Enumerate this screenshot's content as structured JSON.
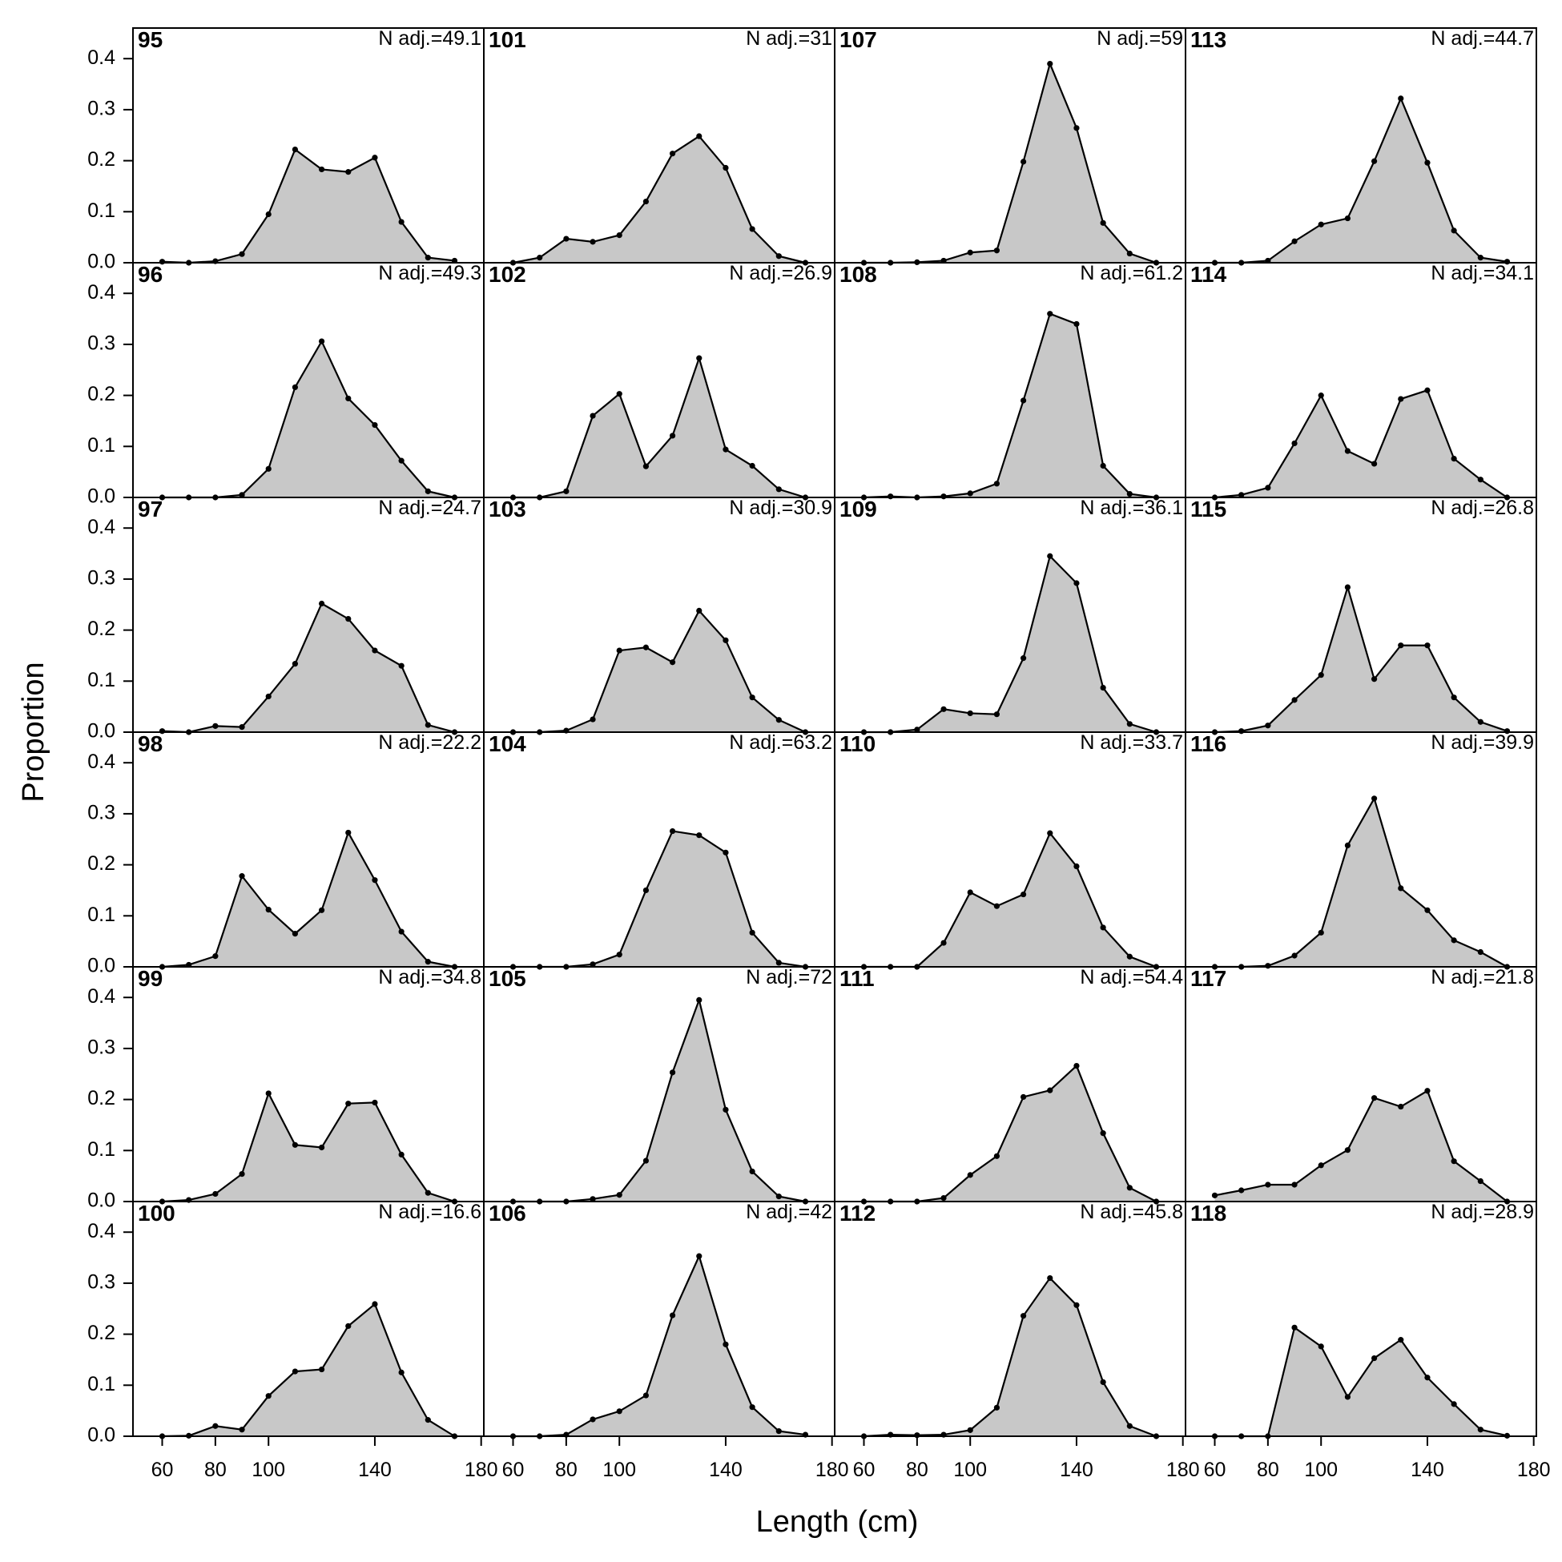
{
  "chart_data": {
    "type": "area",
    "xlabel": "Length (cm)",
    "ylabel": "Proportion",
    "x": [
      60,
      70,
      80,
      90,
      100,
      110,
      120,
      130,
      140,
      150,
      160,
      170
    ],
    "xlim": [
      49,
      181
    ],
    "ylim": [
      0,
      0.46
    ],
    "xticks": [
      60,
      80,
      100,
      140,
      180
    ],
    "yticks": [
      {
        "value": 0,
        "label": "0.0"
      },
      0.1,
      0.2,
      0.3,
      0.4
    ],
    "color": "#c8c8c8",
    "line_color": "#000000",
    "panels": [
      {
        "title": "95",
        "annotation": "N adj.=49.1",
        "values": [
          0.002,
          0,
          0.003,
          0.017,
          0.095,
          0.222,
          0.183,
          0.178,
          0.206,
          0.08,
          0.01,
          0.004
        ]
      },
      {
        "title": "96",
        "annotation": "N adj.=49.3",
        "values": [
          0,
          0,
          0,
          0.005,
          0.056,
          0.216,
          0.306,
          0.194,
          0.142,
          0.072,
          0.012,
          0
        ]
      },
      {
        "title": "97",
        "annotation": "N adj.=24.7",
        "values": [
          0.002,
          0,
          0.012,
          0.01,
          0.07,
          0.134,
          0.252,
          0.222,
          0.16,
          0.13,
          0.014,
          0
        ]
      },
      {
        "title": "98",
        "annotation": "N adj.=22.2",
        "values": [
          0,
          0.004,
          0.021,
          0.178,
          0.112,
          0.065,
          0.111,
          0.263,
          0.17,
          0.069,
          0.01,
          0
        ]
      },
      {
        "title": "99",
        "annotation": "N adj.=34.8",
        "values": [
          0,
          0.003,
          0.015,
          0.054,
          0.212,
          0.111,
          0.106,
          0.192,
          0.194,
          0.092,
          0.017,
          0
        ]
      },
      {
        "title": "100",
        "annotation": "N adj.=16.6",
        "values": [
          0,
          0.001,
          0.02,
          0.013,
          0.079,
          0.127,
          0.131,
          0.216,
          0.259,
          0.125,
          0.032,
          0
        ]
      },
      {
        "title": "101",
        "annotation": "N adj.=31",
        "values": [
          0,
          0.01,
          0.047,
          0.041,
          0.054,
          0.12,
          0.214,
          0.248,
          0.186,
          0.066,
          0.013,
          0
        ]
      },
      {
        "title": "102",
        "annotation": "N adj.=26.9",
        "values": [
          0,
          0,
          0.012,
          0.16,
          0.203,
          0.061,
          0.121,
          0.273,
          0.094,
          0.062,
          0.016,
          0
        ]
      },
      {
        "title": "103",
        "annotation": "N adj.=30.9",
        "values": [
          0,
          0,
          0.003,
          0.025,
          0.16,
          0.166,
          0.137,
          0.238,
          0.18,
          0.068,
          0.024,
          0
        ]
      },
      {
        "title": "104",
        "annotation": "N adj.=63.2",
        "values": [
          0,
          0,
          0,
          0.005,
          0.024,
          0.15,
          0.266,
          0.258,
          0.224,
          0.067,
          0.008,
          0
        ]
      },
      {
        "title": "105",
        "annotation": "N adj.=72",
        "values": [
          0,
          0,
          0,
          0.005,
          0.013,
          0.08,
          0.253,
          0.395,
          0.18,
          0.059,
          0.01,
          0
        ]
      },
      {
        "title": "106",
        "annotation": "N adj.=42",
        "values": [
          0,
          0,
          0.003,
          0.033,
          0.049,
          0.08,
          0.237,
          0.353,
          0.18,
          0.057,
          0.01,
          0.003
        ]
      },
      {
        "title": "107",
        "annotation": "N adj.=59",
        "values": [
          0,
          0,
          0.001,
          0.004,
          0.02,
          0.024,
          0.198,
          0.39,
          0.264,
          0.078,
          0.018,
          0
        ]
      },
      {
        "title": "108",
        "annotation": "N adj.=61.2",
        "values": [
          0,
          0.002,
          0,
          0.002,
          0.008,
          0.027,
          0.19,
          0.36,
          0.34,
          0.062,
          0.007,
          0
        ]
      },
      {
        "title": "109",
        "annotation": "N adj.=36.1",
        "values": [
          0,
          0,
          0.005,
          0.045,
          0.037,
          0.035,
          0.145,
          0.345,
          0.292,
          0.087,
          0.016,
          0
        ]
      },
      {
        "title": "110",
        "annotation": "N adj.=33.7",
        "values": [
          0,
          0,
          0,
          0.047,
          0.146,
          0.119,
          0.142,
          0.262,
          0.197,
          0.077,
          0.02,
          0
        ]
      },
      {
        "title": "111",
        "annotation": "N adj.=54.4",
        "values": [
          0,
          0,
          0,
          0.007,
          0.052,
          0.089,
          0.205,
          0.218,
          0.266,
          0.134,
          0.027,
          0
        ]
      },
      {
        "title": "112",
        "annotation": "N adj.=45.8",
        "values": [
          0,
          0.003,
          0.002,
          0.003,
          0.012,
          0.056,
          0.236,
          0.31,
          0.257,
          0.106,
          0.02,
          0
        ]
      },
      {
        "title": "113",
        "annotation": "N adj.=44.7",
        "values": [
          0,
          0,
          0.004,
          0.042,
          0.075,
          0.087,
          0.199,
          0.322,
          0.196,
          0.063,
          0.01,
          0.002
        ]
      },
      {
        "title": "114",
        "annotation": "N adj.=34.1",
        "values": [
          0,
          0.005,
          0.019,
          0.106,
          0.2,
          0.091,
          0.066,
          0.193,
          0.21,
          0.076,
          0.035,
          0
        ]
      },
      {
        "title": "115",
        "annotation": "N adj.=26.8",
        "values": [
          0,
          0.002,
          0.013,
          0.063,
          0.112,
          0.284,
          0.104,
          0.17,
          0.17,
          0.068,
          0.02,
          0.002
        ]
      },
      {
        "title": "116",
        "annotation": "N adj.=39.9",
        "values": [
          0,
          0,
          0.002,
          0.022,
          0.067,
          0.238,
          0.33,
          0.154,
          0.111,
          0.052,
          0.029,
          0
        ]
      },
      {
        "title": "117",
        "annotation": "N adj.=21.8",
        "values": [
          0.012,
          0.022,
          0.033,
          0.033,
          0.071,
          0.101,
          0.203,
          0.186,
          0.217,
          0.079,
          0.04,
          0
        ]
      },
      {
        "title": "118",
        "annotation": "N adj.=28.9",
        "values": [
          0,
          0,
          0,
          0.213,
          0.176,
          0.077,
          0.153,
          0.189,
          0.115,
          0.063,
          0.013,
          0.001
        ]
      }
    ]
  }
}
